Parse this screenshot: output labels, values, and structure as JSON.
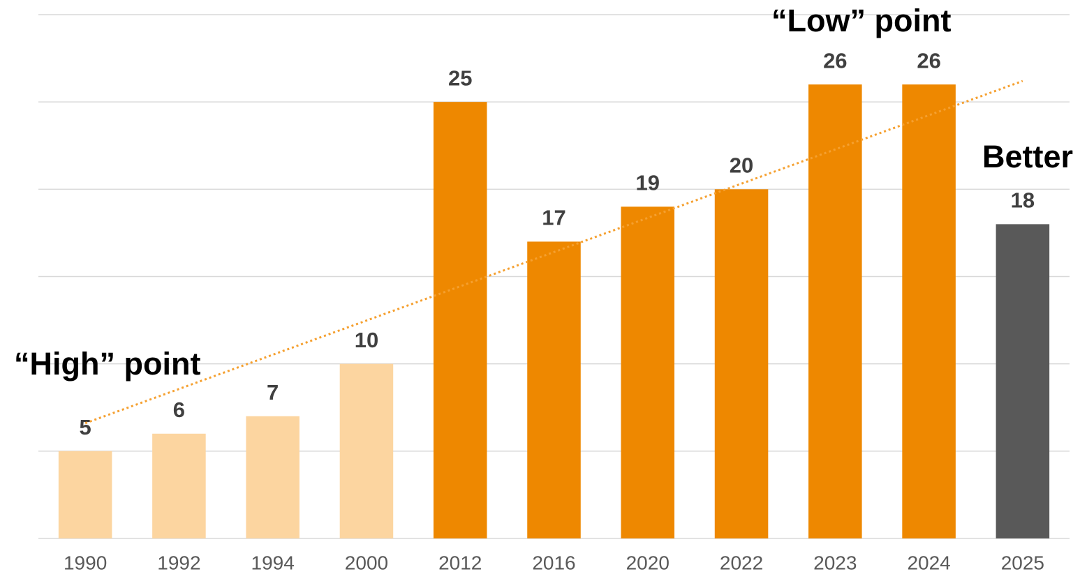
{
  "chart_data": {
    "type": "bar",
    "categories": [
      "1990",
      "1992",
      "1994",
      "2000",
      "2012",
      "2016",
      "2020",
      "2022",
      "2023",
      "2024",
      "2025"
    ],
    "values": [
      5,
      6,
      7,
      10,
      25,
      17,
      19,
      20,
      26,
      26,
      18
    ],
    "colors": [
      "#FCD5A0",
      "#FCD5A0",
      "#FCD5A0",
      "#FCD5A0",
      "#EE8800",
      "#EE8800",
      "#EE8800",
      "#EE8800",
      "#EE8800",
      "#EE8800",
      "#595959"
    ],
    "ylim": [
      0,
      30
    ],
    "yticks": [
      0,
      5,
      10,
      15,
      20,
      25,
      30
    ],
    "grid": true,
    "trendline": {
      "start": 6.6,
      "end": 26.2,
      "color": "#F5A030"
    },
    "annotations": [
      "“High” point",
      "“Low” point",
      "Better"
    ]
  }
}
